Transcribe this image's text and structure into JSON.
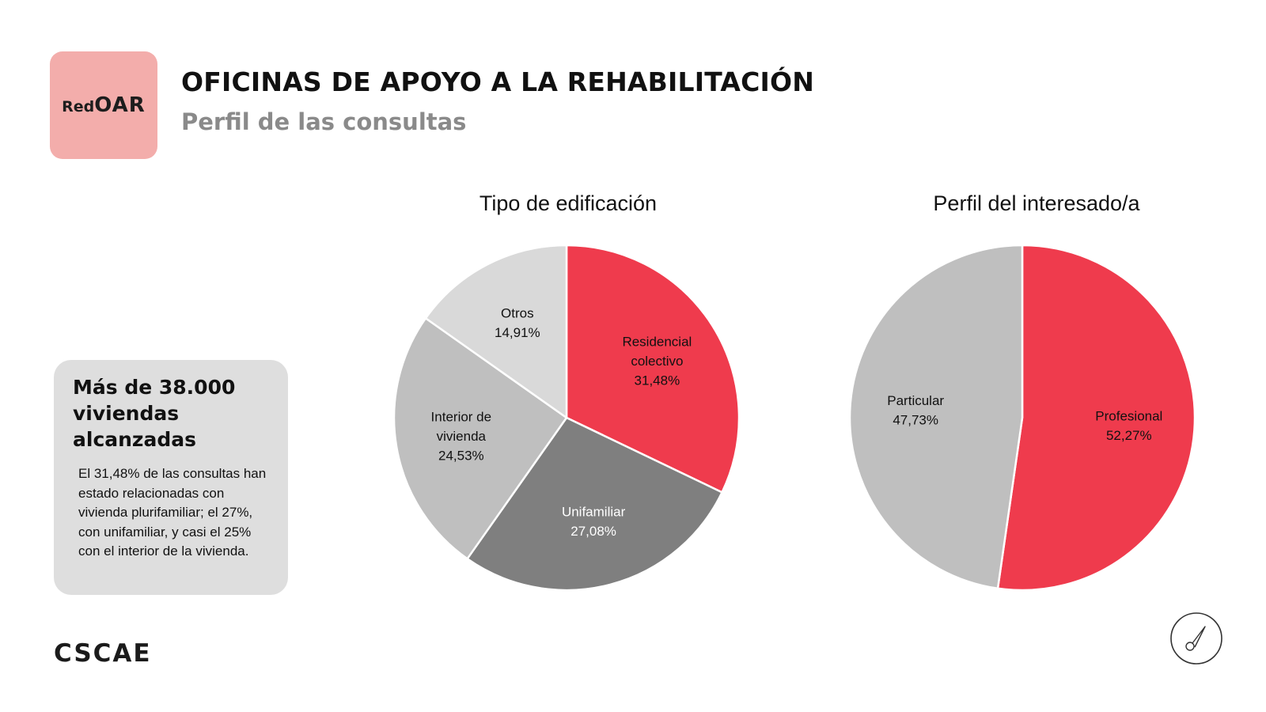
{
  "header": {
    "logo_small": "Red",
    "logo_big": "OAR",
    "title": "OFICINAS DE APOYO A LA REHABILITACIÓN",
    "subtitle": "Perfil de las consultas"
  },
  "info": {
    "title": "Más de 38.000 viviendas alcanzadas",
    "body": "El 31,48% de las consultas han estado relacionadas con vivienda plurifamiliar; el 27%, con unifamiliar, y casi el 25% con el interior de la vivienda."
  },
  "footer": {
    "brand": "CSCAE",
    "nav_icon": "compass-icon"
  },
  "colors": {
    "accent": "#ef3b4d",
    "dark_gray": "#7f7f7f",
    "mid_gray": "#bfbfbf",
    "light_gray": "#d9d9d9"
  },
  "chart_data": [
    {
      "type": "pie",
      "title": "Tipo de edificación",
      "slices": [
        {
          "label": [
            "Residencial",
            "colectivo"
          ],
          "value": 31.48,
          "text": "31,48%",
          "color": "#ef3b4d",
          "text_color": "#111111"
        },
        {
          "label": [
            "Unifamiliar"
          ],
          "value": 27.08,
          "text": "27,08%",
          "color": "#7f7f7f",
          "text_color": "#ffffff"
        },
        {
          "label": [
            "Interior de",
            "vivienda"
          ],
          "value": 24.53,
          "text": "24,53%",
          "color": "#bfbfbf",
          "text_color": "#111111"
        },
        {
          "label": [
            "Otros"
          ],
          "value": 14.91,
          "text": "14,91%",
          "color": "#d9d9d9",
          "text_color": "#111111"
        }
      ]
    },
    {
      "type": "pie",
      "title": "Perfil del interesado/a",
      "slices": [
        {
          "label": [
            "Profesional"
          ],
          "value": 52.27,
          "text": "52,27%",
          "color": "#ef3b4d",
          "text_color": "#111111"
        },
        {
          "label": [
            "Particular"
          ],
          "value": 47.73,
          "text": "47,73%",
          "color": "#bfbfbf",
          "text_color": "#111111"
        }
      ]
    }
  ]
}
